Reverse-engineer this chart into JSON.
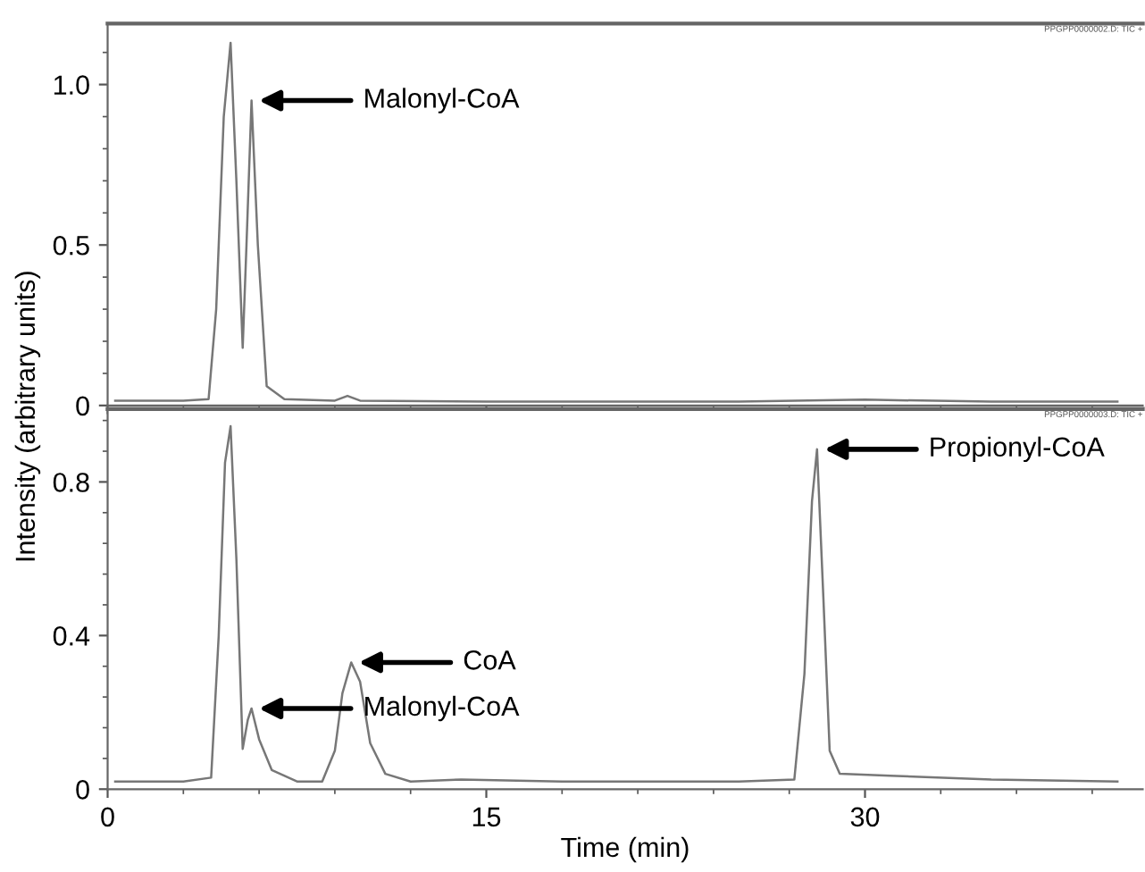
{
  "chart_data": [
    {
      "type": "line",
      "series": [
        {
          "color": "#777777",
          "x": [
            0.3,
            3,
            4.0,
            4.3,
            4.6,
            4.87,
            5.1,
            5.35,
            5.5,
            5.7,
            5.95,
            6.3,
            7,
            9,
            9.5,
            10,
            15,
            25,
            30,
            35,
            40
          ],
          "values": [
            0.015,
            0.015,
            0.02,
            0.3,
            0.9,
            1.13,
            0.7,
            0.18,
            0.5,
            0.95,
            0.5,
            0.06,
            0.02,
            0.015,
            0.03,
            0.015,
            0.012,
            0.012,
            0.018,
            0.012,
            0.012
          ]
        }
      ],
      "xlim": [
        0,
        41
      ],
      "xticks": [
        0,
        15,
        30
      ],
      "ylim": [
        0,
        1.19
      ],
      "yticks": [
        0,
        0.5,
        {
          "value": 1,
          "label": "1.0"
        }
      ],
      "tick_labels": "y",
      "annotations": [
        {
          "text": "Malonyl-CoA",
          "x": 5.7,
          "y": 0.95
        },
        "PPGPP0000002.D: TIC +"
      ]
    },
    {
      "type": "line",
      "series": [
        {
          "color": "#777777",
          "x": [
            0.3,
            3,
            4.1,
            4.4,
            4.65,
            4.87,
            5.1,
            5.35,
            5.55,
            5.7,
            6.0,
            6.5,
            7.5,
            8.5,
            9.0,
            9.3,
            9.65,
            10.0,
            10.4,
            11,
            12,
            14,
            18,
            25,
            27.2,
            27.6,
            27.9,
            28.1,
            28.35,
            28.6,
            29,
            31,
            35,
            40
          ],
          "values": [
            0.02,
            0.02,
            0.03,
            0.4,
            0.85,
            0.945,
            0.6,
            0.105,
            0.18,
            0.21,
            0.13,
            0.05,
            0.02,
            0.02,
            0.1,
            0.25,
            0.33,
            0.28,
            0.12,
            0.04,
            0.02,
            0.025,
            0.02,
            0.02,
            0.025,
            0.3,
            0.75,
            0.885,
            0.5,
            0.1,
            0.04,
            0.035,
            0.025,
            0.02
          ]
        }
      ],
      "xlim": [
        0,
        41
      ],
      "xticks": [
        0,
        15,
        30
      ],
      "ylim": [
        0,
        0.99
      ],
      "yticks": [
        0,
        0.4,
        0.8
      ],
      "xlabel": "Time (min)",
      "ylabel": "Intensity (arbitrary units)",
      "annotations": [
        {
          "text": "Propionyl-CoA",
          "x": 28.1,
          "y": 0.885
        },
        {
          "text": "CoA",
          "x": 9.65,
          "y": 0.33
        },
        {
          "text": "Malonyl-CoA",
          "x": 5.7,
          "y": 0.21
        },
        "PPGPP0000003.D: TIC +"
      ]
    }
  ]
}
